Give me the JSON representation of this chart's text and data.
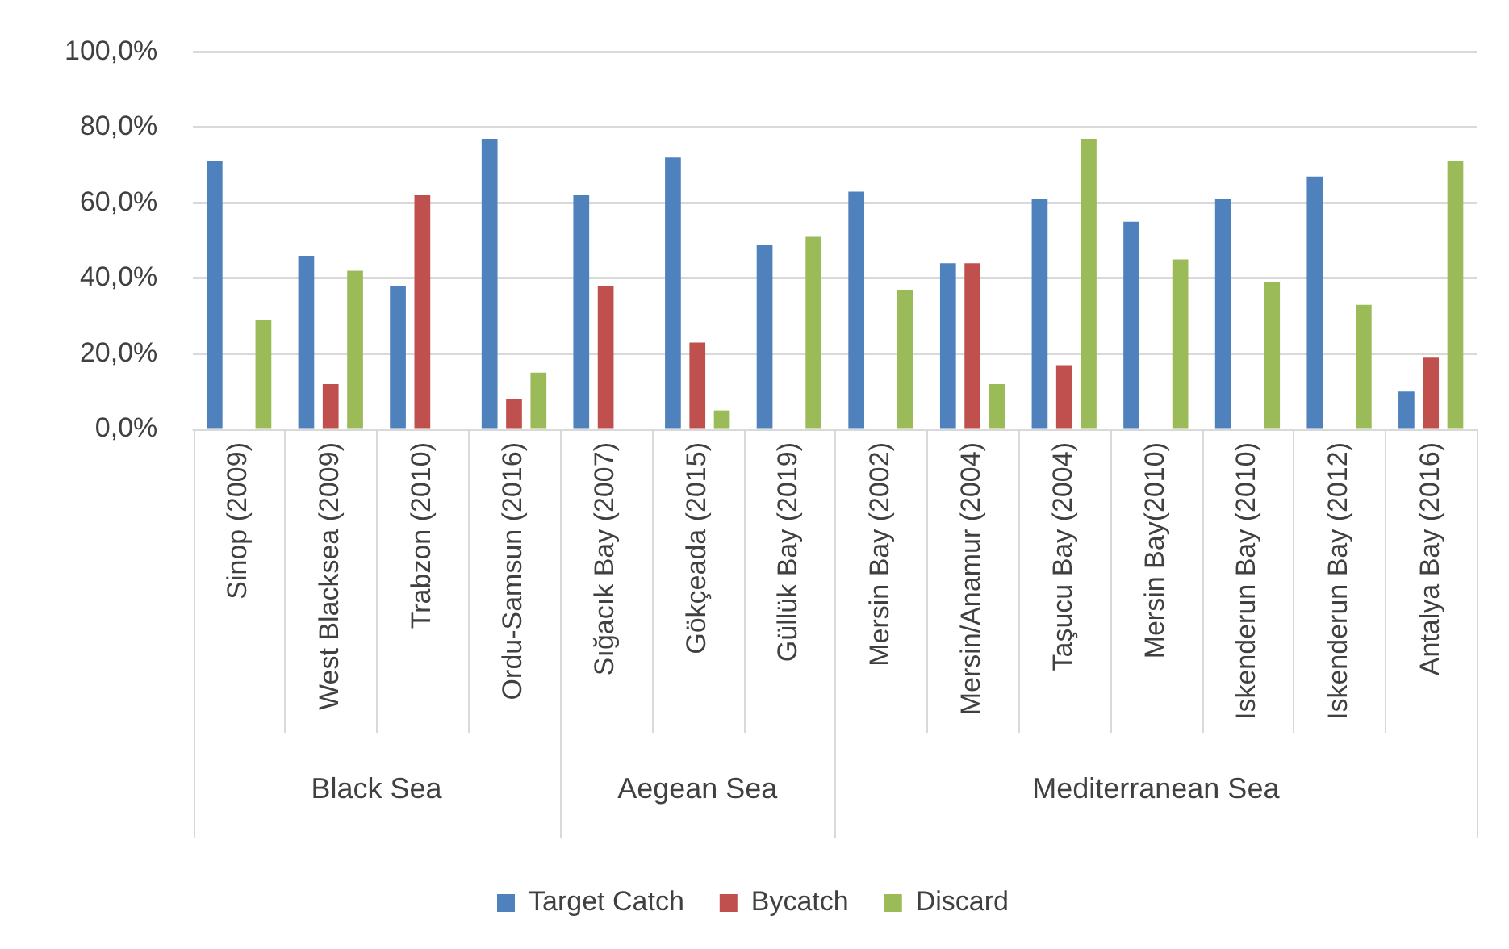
{
  "chart_data": {
    "type": "bar",
    "categories": [
      "Sinop (2009)",
      "West Blacksea (2009)",
      "Trabzon (2010)",
      "Ordu-Samsun (2016)",
      "Sığacık Bay (2007)",
      "Gökçeada (2015)",
      "Güllük Bay (2019)",
      "Mersin Bay (2002)",
      "Mersin/Anamur (2004)",
      "Taşucu Bay (2004)",
      "Mersin Bay(2010)",
      "Iskenderun Bay (2010)",
      "Iskenderun Bay (2012)",
      "Antalya Bay (2016)"
    ],
    "series": [
      {
        "name": "Target Catch",
        "color": "#4f81bd",
        "values": [
          71,
          46,
          38,
          77,
          62,
          72,
          49,
          63,
          44,
          61,
          55,
          61,
          67,
          10
        ]
      },
      {
        "name": "Bycatch",
        "color": "#c0504d",
        "values": [
          null,
          12,
          62,
          8,
          38,
          23,
          null,
          null,
          44,
          17,
          null,
          null,
          null,
          19
        ]
      },
      {
        "name": "Discard",
        "color": "#9bbb59",
        "values": [
          29,
          42,
          null,
          15,
          null,
          5,
          51,
          37,
          12,
          77,
          45,
          39,
          33,
          71
        ]
      }
    ],
    "ylim": [
      0,
      100
    ],
    "yticks": [
      {
        "value": 0,
        "label": "0,0%"
      },
      {
        "value": 20,
        "label": "20,0%"
      },
      {
        "value": 40,
        "label": "40,0%"
      },
      {
        "value": 60,
        "label": "60,0%"
      },
      {
        "value": 80,
        "label": "80,0%"
      },
      {
        "value": 100,
        "label": "100,0%"
      }
    ],
    "grid": "y",
    "legend": "bottom",
    "annotations": [
      "Black Sea",
      "Aegean Sea",
      "Mediterranean Sea"
    ]
  }
}
